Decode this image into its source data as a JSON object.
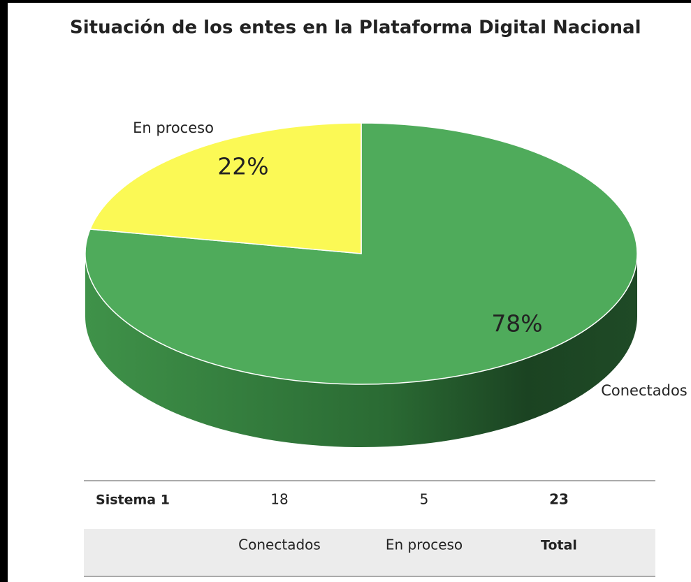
{
  "chart_data": {
    "type": "pie",
    "title": "Situación de los entes en la Plataforma Digital Nacional",
    "categories": [
      "Conectados",
      "En proceso"
    ],
    "values": [
      78,
      22
    ],
    "value_labels": [
      "78%",
      "22%"
    ],
    "colors": [
      "#4fab5b",
      "#fbf955"
    ]
  },
  "table": {
    "row_label": "Sistema 1",
    "counts": [
      18,
      5
    ],
    "total": 23,
    "total_label": "Total"
  }
}
